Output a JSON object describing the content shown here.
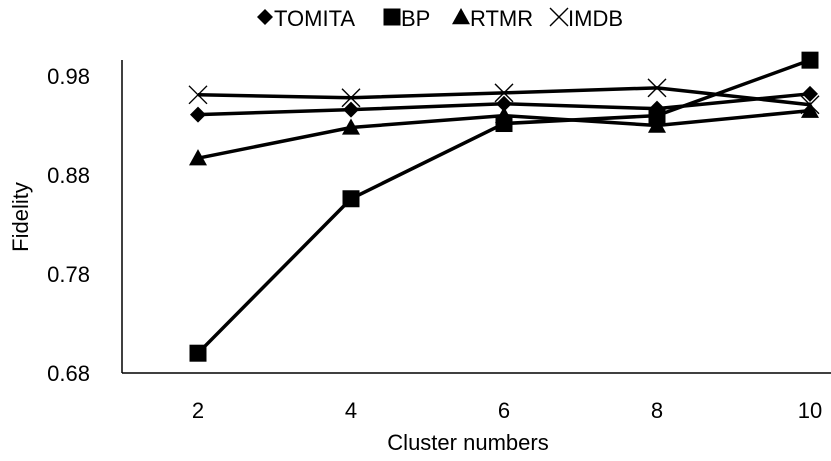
{
  "chart_data": {
    "type": "line",
    "title": "",
    "xlabel": "Cluster numbers",
    "ylabel": "Fidelity",
    "x": [
      2,
      4,
      6,
      8,
      10
    ],
    "x_tick_labels": [
      "2",
      "4",
      "6",
      "8",
      "10"
    ],
    "y_tick_labels": [
      "0.98",
      "0.88",
      "0.78",
      "0.68"
    ],
    "ylim": [
      0.68,
      1.0
    ],
    "yticks": [
      0.98,
      0.88,
      0.78,
      0.68
    ],
    "grid": false,
    "legend_position": "top",
    "series": [
      {
        "name": "TOMITA",
        "marker": "diamond",
        "values": [
          0.941,
          0.946,
          0.952,
          0.947,
          0.962
        ]
      },
      {
        "name": "BP",
        "marker": "square",
        "values": [
          0.7,
          0.856,
          0.932,
          0.94,
          0.996
        ]
      },
      {
        "name": "RTMR",
        "marker": "triangle",
        "values": [
          0.897,
          0.928,
          0.94,
          0.93,
          0.945
        ]
      },
      {
        "name": "IMDB",
        "marker": "x",
        "values": [
          0.961,
          0.958,
          0.963,
          0.968,
          0.951
        ]
      }
    ],
    "colors": {
      "line": "#000000",
      "axis": "#000000"
    }
  }
}
